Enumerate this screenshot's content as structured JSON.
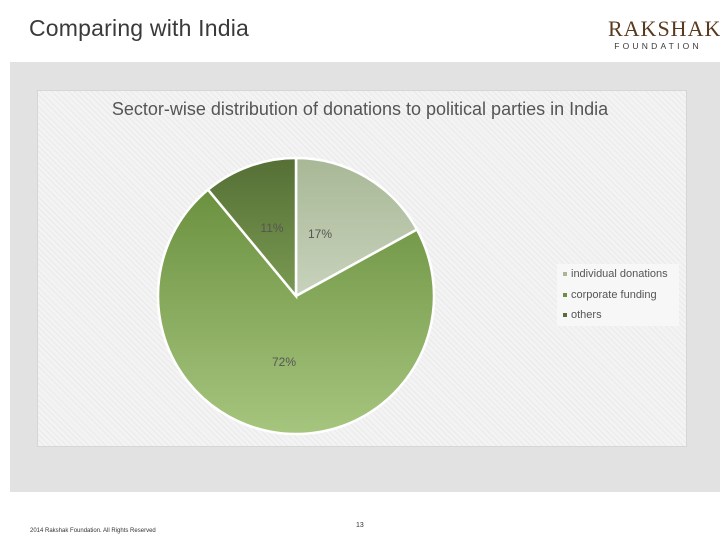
{
  "slide": {
    "title": "Comparing with India",
    "logo_main": "RAKSHAK",
    "logo_sub": "FOUNDATION",
    "footer_copyright": "2014 Rakshak Foundation. All Rights Reserved",
    "page_number": "13"
  },
  "chart_data": {
    "type": "pie",
    "title": "Sector-wise distribution of donations to political parties in India",
    "categories": [
      "individual donations",
      "corporate funding",
      "others"
    ],
    "values": [
      17,
      72,
      11
    ],
    "data_labels": [
      "17%",
      "72%",
      "11%"
    ],
    "legend_position": "right",
    "colors": {
      "individual donations": [
        "#c8d2bc",
        "#a8b896"
      ],
      "corporate funding": [
        "#a6c57e",
        "#6b913f"
      ],
      "others": [
        "#7a9a52",
        "#556f35"
      ]
    }
  }
}
